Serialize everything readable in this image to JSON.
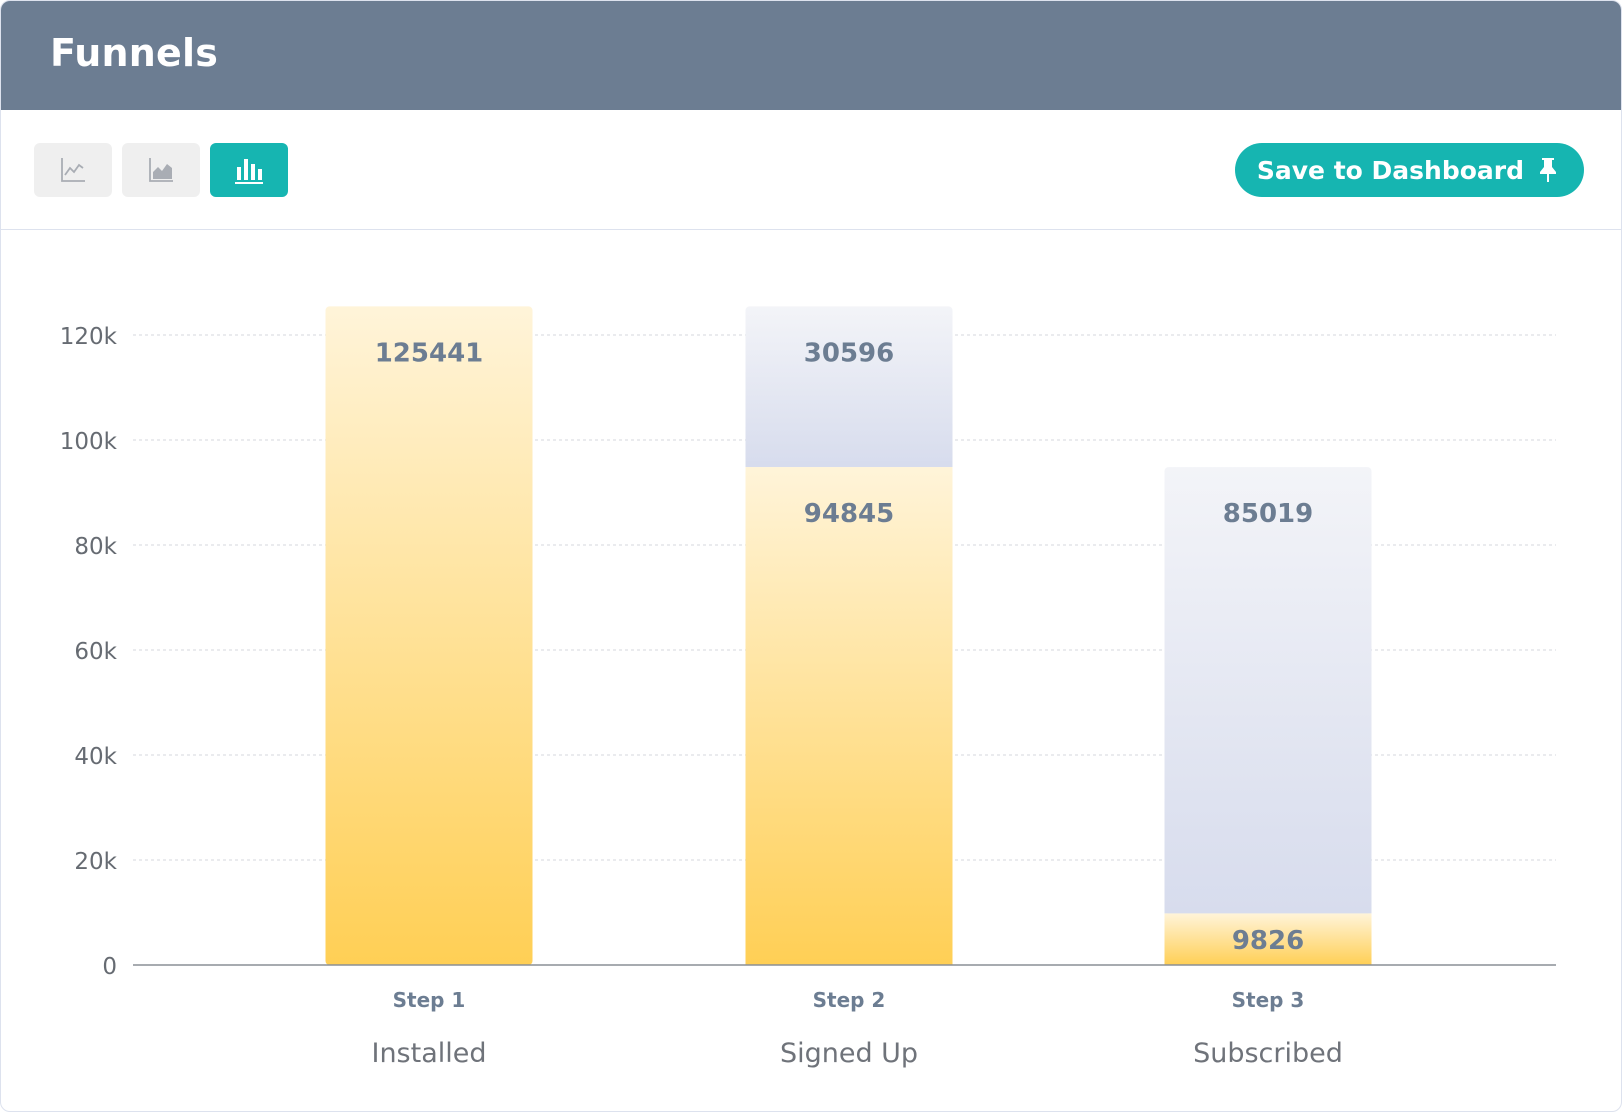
{
  "header": {
    "title": "Funnels"
  },
  "toolbar": {
    "chart_types": [
      {
        "icon": "line-chart-icon",
        "active": false
      },
      {
        "icon": "area-chart-icon",
        "active": false
      },
      {
        "icon": "bar-chart-icon",
        "active": true
      }
    ],
    "save_label": "Save to Dashboard",
    "save_icon": "pin-icon"
  },
  "colors": {
    "header": "#6c7d92",
    "accent": "#16b5b1",
    "converted_top": "#fff4d9",
    "converted_bottom": "#ffcf55",
    "dropped_top": "#f3f4f8",
    "dropped_bottom": "#d7dced",
    "label": "#6c7d92"
  },
  "chart_data": {
    "type": "bar",
    "stacked": true,
    "categories": [
      "Installed",
      "Signed Up",
      "Subscribed"
    ],
    "category_steps": [
      "Step 1",
      "Step 2",
      "Step 3"
    ],
    "series": [
      {
        "values": [
          125441,
          94845,
          9826
        ]
      },
      {
        "values": [
          0,
          30596,
          85019
        ]
      }
    ],
    "ylim": [
      0,
      120000
    ],
    "y_ticks": [
      0,
      20000,
      40000,
      60000,
      80000,
      100000,
      120000
    ],
    "y_tick_labels": [
      "0",
      "20k",
      "40k",
      "60k",
      "80k",
      "100k",
      "120k"
    ],
    "grid": true,
    "xlabel": "",
    "ylabel": ""
  }
}
